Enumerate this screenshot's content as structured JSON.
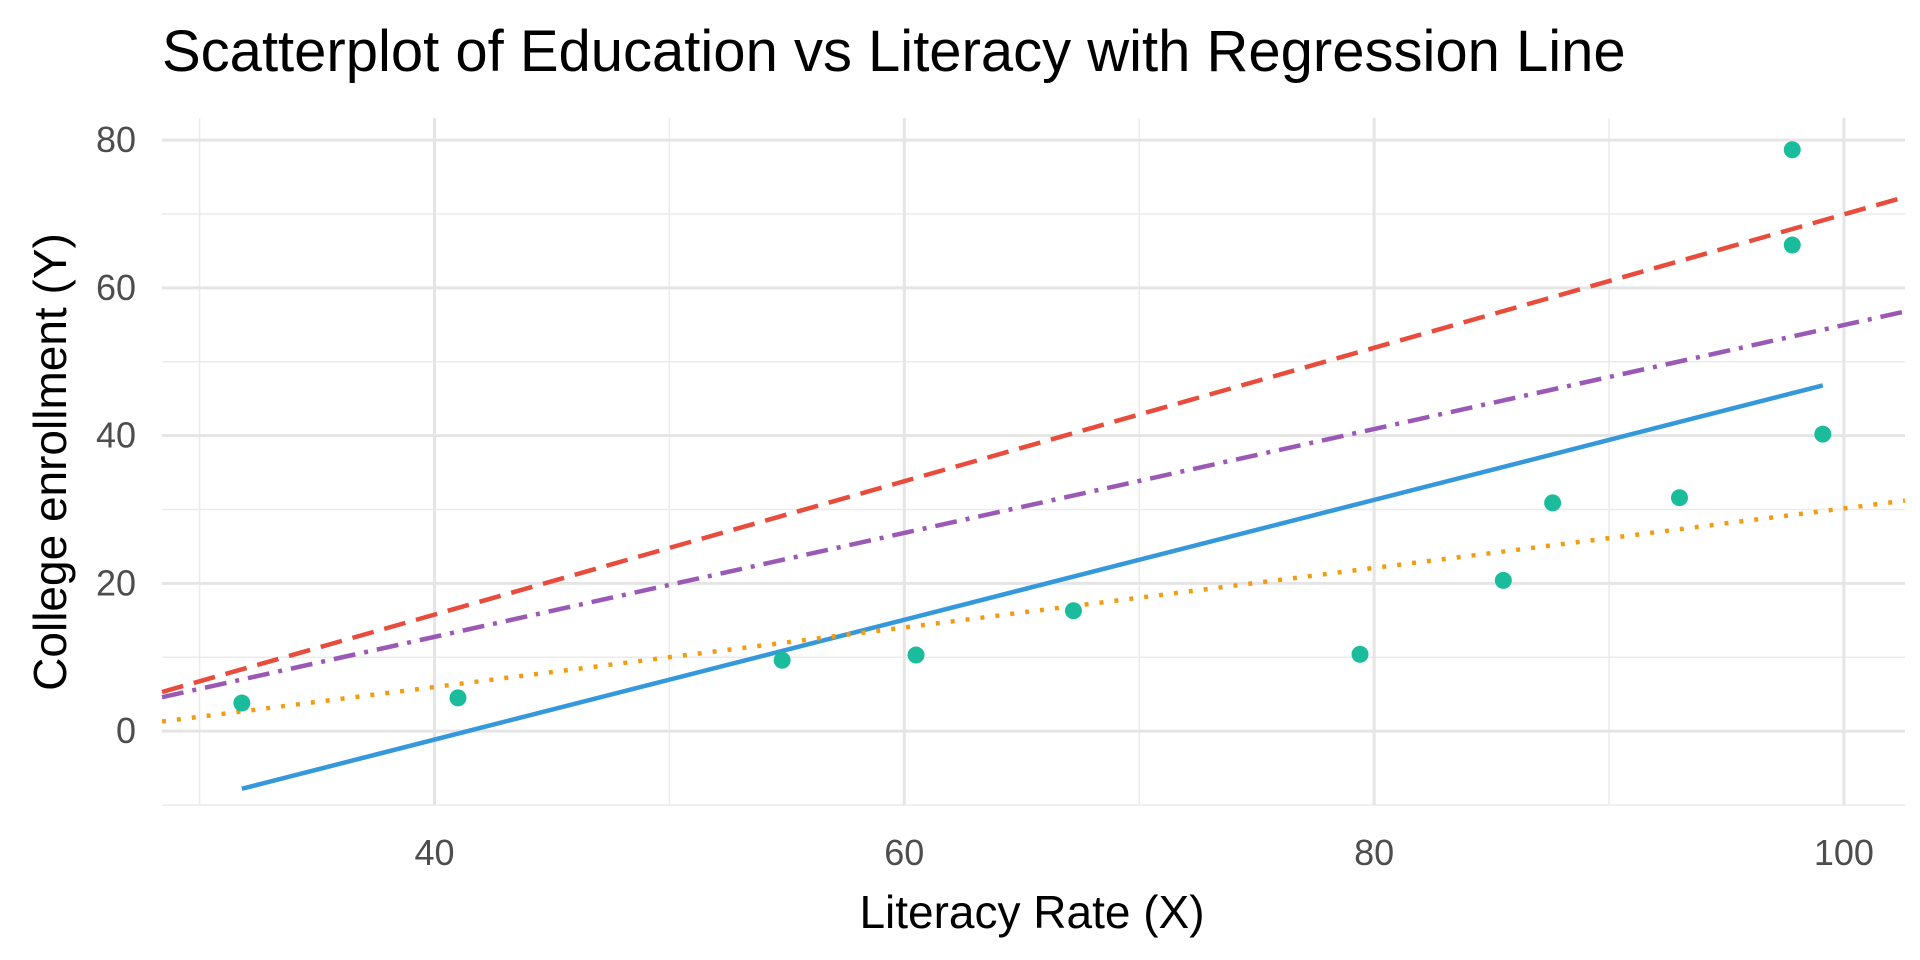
{
  "chart_data": {
    "type": "scatter",
    "title": "Scatterplot of Education vs Literacy with Regression Line",
    "xlabel": "Literacy Rate (X)",
    "ylabel": "College enrollment (Y)",
    "xlim": [
      28.4,
      102.6
    ],
    "ylim": [
      -10,
      83
    ],
    "x_ticks": [
      40,
      60,
      80,
      100
    ],
    "x_tick_labels": [
      "40",
      "60",
      "80",
      "100"
    ],
    "y_ticks": [
      0,
      20,
      40,
      60,
      80
    ],
    "y_tick_labels": [
      "0",
      "20",
      "40",
      "60",
      "80"
    ],
    "grid": true,
    "legend": false,
    "points": {
      "color": "#1abc9c",
      "x": [
        31.8,
        41.0,
        54.8,
        60.5,
        67.2,
        79.4,
        85.5,
        87.6,
        93.0,
        97.8,
        97.8,
        99.1
      ],
      "y": [
        3.8,
        4.5,
        9.6,
        10.3,
        16.3,
        10.4,
        20.4,
        30.9,
        31.6,
        65.8,
        78.7,
        40.2
      ]
    },
    "lines": [
      {
        "style": "solid",
        "color": "#3498db",
        "x": [
          31.8,
          99.1
        ],
        "y": [
          -7.8,
          46.8
        ]
      },
      {
        "style": "dashed",
        "color": "#e74c3c",
        "x": [
          28.4,
          102.6
        ],
        "y": [
          5.3,
          72.3
        ]
      },
      {
        "style": "dashdot",
        "color": "#9b59b6",
        "x": [
          28.4,
          102.6
        ],
        "y": [
          4.6,
          56.8
        ]
      },
      {
        "style": "dotted",
        "color": "#f39c12",
        "x": [
          28.4,
          102.6
        ],
        "y": [
          1.3,
          31.2
        ]
      }
    ]
  }
}
